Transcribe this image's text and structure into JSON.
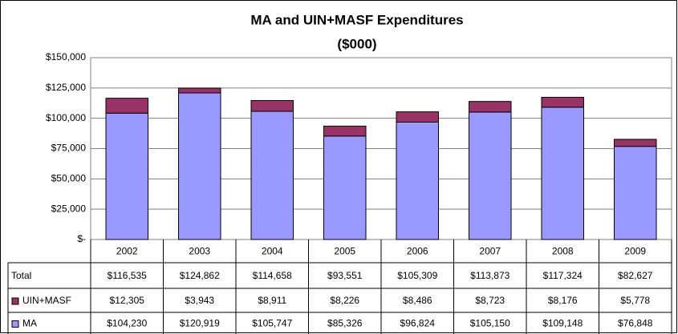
{
  "chart_data": {
    "type": "stacked_bar",
    "title": "MA and UIN+MASF Expenditures",
    "subtitle": "($000)",
    "categories": [
      "2002",
      "2003",
      "2004",
      "2005",
      "2006",
      "2007",
      "2008",
      "2009"
    ],
    "series": [
      {
        "name": "MA",
        "color": "#9999ff",
        "values": [
          104230,
          120919,
          105747,
          85326,
          96824,
          105150,
          109148,
          76848
        ],
        "value_labels": [
          "$104,230",
          "$120,919",
          "$105,747",
          "$85,326",
          "$96,824",
          "$105,150",
          "$109,148",
          "$76,848"
        ]
      },
      {
        "name": "UIN+MASF",
        "color": "#993366",
        "values": [
          12305,
          3943,
          8911,
          8226,
          8486,
          8723,
          8176,
          5778
        ],
        "value_labels": [
          "$12,305",
          "$3,943",
          "$8,911",
          "$8,226",
          "$8,486",
          "$8,723",
          "$8,176",
          "$5,778"
        ]
      }
    ],
    "totals": {
      "name": "Total",
      "values": [
        116535,
        124862,
        114658,
        93551,
        105309,
        113873,
        117324,
        82627
      ],
      "value_labels": [
        "$116,535",
        "$124,862",
        "$114,658",
        "$93,551",
        "$105,309",
        "$113,873",
        "$117,324",
        "$82,627"
      ]
    },
    "ylim": [
      0,
      150000
    ],
    "yticks": [
      {
        "value": 0,
        "label": "$-"
      },
      {
        "value": 25000,
        "label": "$25,000"
      },
      {
        "value": 50000,
        "label": "$50,000"
      },
      {
        "value": 75000,
        "label": "$75,000"
      },
      {
        "value": 100000,
        "label": "$100,000"
      },
      {
        "value": 125000,
        "label": "$125,000"
      },
      {
        "value": 150000,
        "label": "$150,000"
      }
    ],
    "grid": true
  }
}
